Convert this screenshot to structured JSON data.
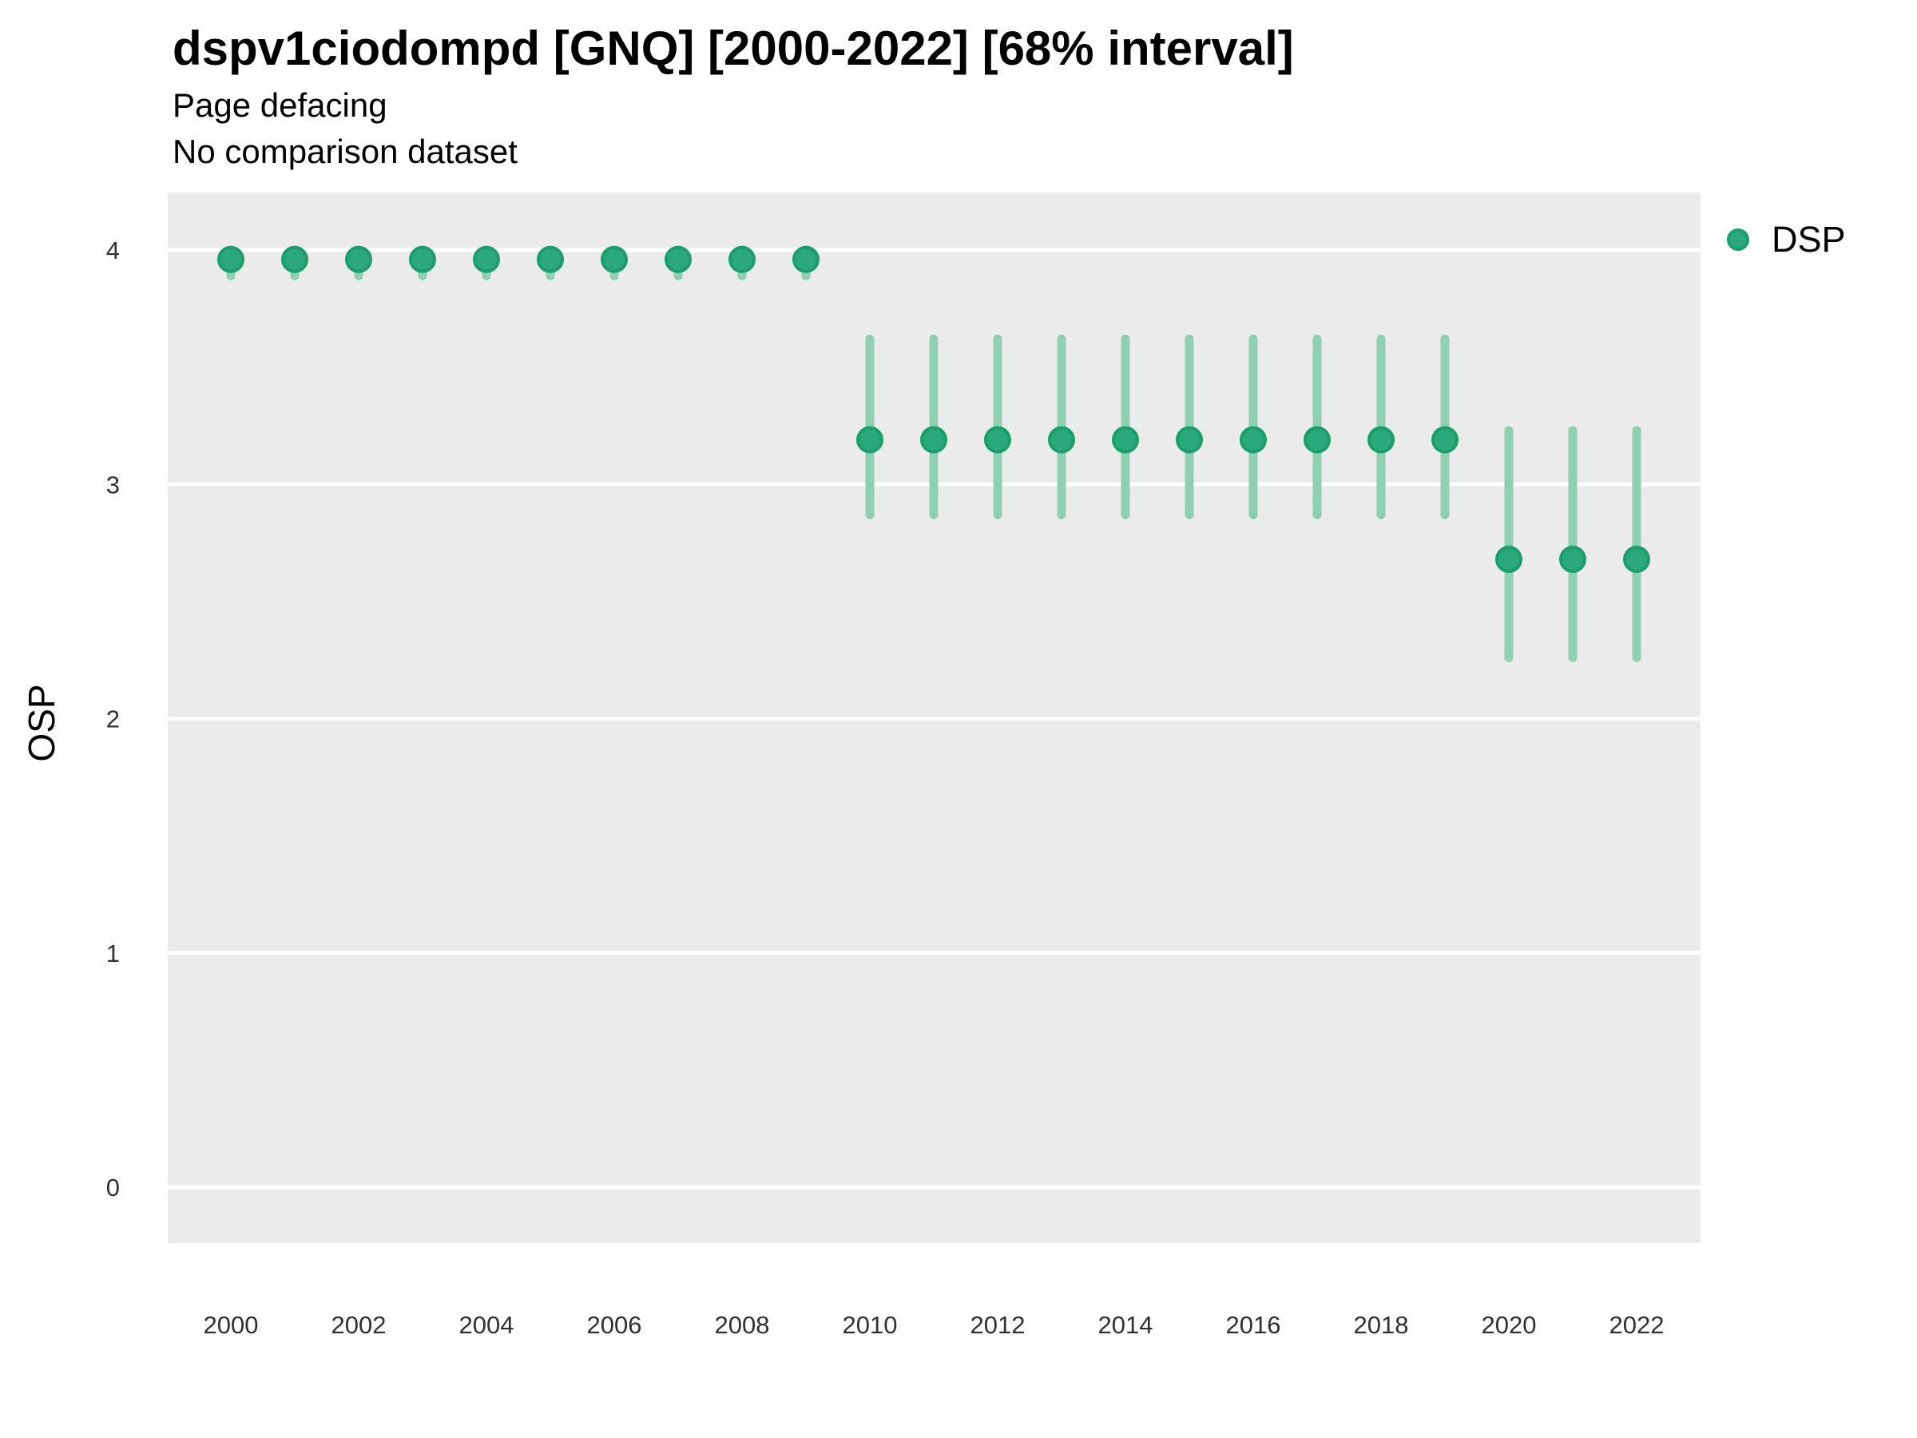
{
  "header": {
    "title": "dspv1ciodompd [GNQ] [2000-2022] [68% interval]",
    "subtitle1": "Page defacing",
    "subtitle2": "No comparison dataset"
  },
  "axes": {
    "y_label": "OSP",
    "x_label": ""
  },
  "legend": {
    "position": "right",
    "items": [
      {
        "label": "DSP",
        "marker": "circle-icon"
      }
    ]
  },
  "colors": {
    "panel_background": "#EBEBEB",
    "gridline": "#FFFFFF",
    "point_fill": "#2BA87D",
    "point_stroke": "#1A9E6B",
    "errorbar": "#8FCFB2",
    "title_text": "#000000",
    "tick_text": "#303030"
  },
  "chart_data": {
    "type": "scatter",
    "title": "dspv1ciodompd [GNQ] [2000-2022] [68% interval]",
    "subtitle": [
      "Page defacing",
      "No comparison dataset"
    ],
    "xlabel": "",
    "ylabel": "OSP",
    "interval_label": "68% interval",
    "grid": "horizontal-major-only",
    "legend_position": "right",
    "x": [
      2000,
      2001,
      2002,
      2003,
      2004,
      2005,
      2006,
      2007,
      2008,
      2009,
      2010,
      2011,
      2012,
      2013,
      2014,
      2015,
      2016,
      2017,
      2018,
      2019,
      2020,
      2021,
      2022
    ],
    "series": [
      {
        "name": "DSP",
        "values": [
          3.96,
          3.96,
          3.96,
          3.96,
          3.96,
          3.96,
          3.96,
          3.96,
          3.96,
          3.96,
          3.19,
          3.19,
          3.19,
          3.19,
          3.19,
          3.19,
          3.19,
          3.19,
          3.19,
          3.19,
          2.68,
          2.68,
          2.68
        ],
        "lower": [
          3.89,
          3.89,
          3.89,
          3.89,
          3.89,
          3.89,
          3.89,
          3.89,
          3.89,
          3.89,
          2.87,
          2.87,
          2.87,
          2.87,
          2.87,
          2.87,
          2.87,
          2.87,
          2.87,
          2.87,
          2.26,
          2.26,
          2.26
        ],
        "upper": [
          4.0,
          4.0,
          4.0,
          4.0,
          4.0,
          4.0,
          4.0,
          4.0,
          4.0,
          4.0,
          3.62,
          3.62,
          3.62,
          3.62,
          3.62,
          3.62,
          3.62,
          3.62,
          3.62,
          3.62,
          3.23,
          3.23,
          3.23
        ]
      }
    ],
    "x_ticks": [
      2000,
      2002,
      2004,
      2006,
      2008,
      2010,
      2012,
      2014,
      2016,
      2018,
      2020,
      2022
    ],
    "y_ticks": [
      0,
      1,
      2,
      3,
      4
    ],
    "ylim": [
      -0.24,
      4.25
    ],
    "xlim": [
      1999,
      2023
    ]
  }
}
